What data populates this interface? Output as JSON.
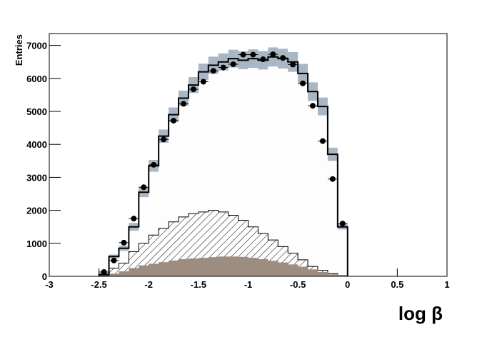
{
  "chart_data": {
    "type": "histogram",
    "x_label": "log β",
    "y_label": "Entries",
    "xlim": [
      -3,
      1
    ],
    "ylim": [
      0,
      7360
    ],
    "xticks": [
      -3,
      -2.5,
      -2,
      -1.5,
      -1,
      -0.5,
      0,
      0.5,
      1
    ],
    "yticks": [
      0,
      1000,
      2000,
      3000,
      4000,
      5000,
      6000,
      7000
    ],
    "bins": [
      -2.5,
      -2.4,
      -2.3,
      -2.2,
      -2.1,
      -2.0,
      -1.9,
      -1.8,
      -1.7,
      -1.6,
      -1.5,
      -1.4,
      -1.3,
      -1.2,
      -1.1,
      -1.0,
      -0.9,
      -0.8,
      -0.7,
      -0.6,
      -0.5,
      -0.4,
      -0.3,
      -0.2,
      -0.1,
      0
    ],
    "series": [
      {
        "style": "step",
        "color": "#000000",
        "fill": "#fdfdfd",
        "band_color": "#a9b7c5",
        "values": [
          60,
          600,
          850,
          1500,
          2550,
          3350,
          4250,
          4900,
          5400,
          5800,
          6200,
          6400,
          6500,
          6600,
          6550,
          6600,
          6550,
          6650,
          6600,
          6500,
          6150,
          5600,
          5150,
          3700,
          1500
        ],
        "errors": [
          20,
          60,
          80,
          120,
          150,
          180,
          200,
          220,
          230,
          240,
          250,
          260,
          260,
          270,
          270,
          280,
          280,
          290,
          300,
          300,
          290,
          280,
          270,
          200,
          80
        ]
      },
      {
        "style": "hatched",
        "color": "#000000",
        "values": [
          20,
          250,
          400,
          750,
          1000,
          1250,
          1450,
          1650,
          1800,
          1900,
          1950,
          2000,
          1950,
          1850,
          1700,
          1500,
          1300,
          1100,
          900,
          700,
          500,
          300,
          180,
          80,
          20
        ]
      },
      {
        "style": "filled",
        "color": "#9d8c80",
        "values": [
          10,
          80,
          150,
          250,
          330,
          380,
          430,
          480,
          520,
          540,
          560,
          580,
          600,
          600,
          590,
          560,
          520,
          470,
          420,
          360,
          290,
          210,
          130,
          60,
          20
        ]
      },
      {
        "style": "points",
        "color": "#000000",
        "values": [
          130,
          480,
          1020,
          1750,
          2700,
          3380,
          4150,
          4720,
          5230,
          5670,
          5900,
          6230,
          6330,
          6430,
          6720,
          6720,
          6580,
          6730,
          6620,
          6420,
          5850,
          5170,
          4100,
          2950,
          1600
        ]
      }
    ]
  }
}
